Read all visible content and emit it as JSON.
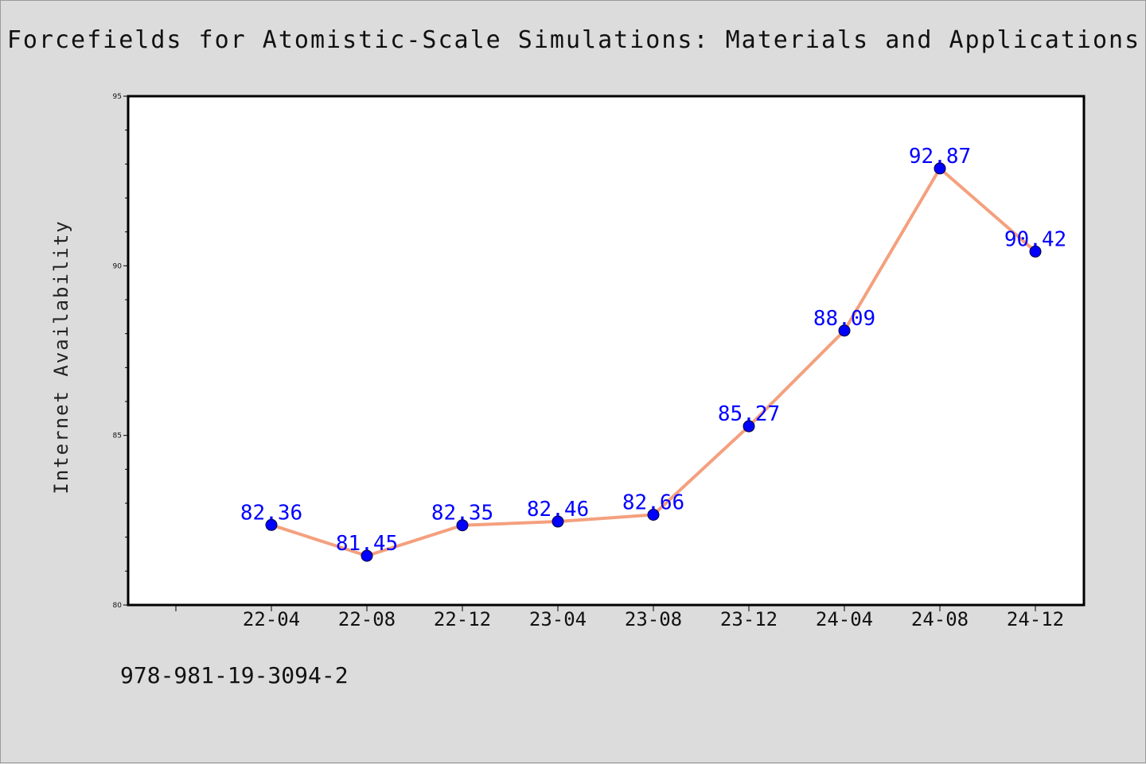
{
  "chart_data": {
    "type": "line",
    "title": "Forcefields for Atomistic-Scale Simulations: Materials and Applications",
    "xlabel": "",
    "ylabel": "Internet Availability",
    "categories": [
      "22-04",
      "22-08",
      "22-12",
      "23-04",
      "23-08",
      "23-12",
      "24-04",
      "24-08",
      "24-12"
    ],
    "values": [
      82.36,
      81.45,
      82.35,
      82.46,
      82.66,
      85.27,
      88.09,
      92.87,
      90.42
    ],
    "data_labels": [
      "82.36",
      "81.45",
      "82.35",
      "82.46",
      "82.66",
      "85.27",
      "88.09",
      "92.87",
      "90.42"
    ],
    "ylim": [
      80,
      95
    ],
    "yticks": [
      80,
      85,
      90,
      95
    ],
    "ytick_labels": [
      "80",
      "85",
      "90",
      "95"
    ],
    "grid": false,
    "line_color": "#f4a07e",
    "marker_color": "#0000ff",
    "label_color": "#0000ff",
    "background": "#dcdcdc"
  },
  "footer": {
    "code": "978-981-19-3094-2"
  }
}
